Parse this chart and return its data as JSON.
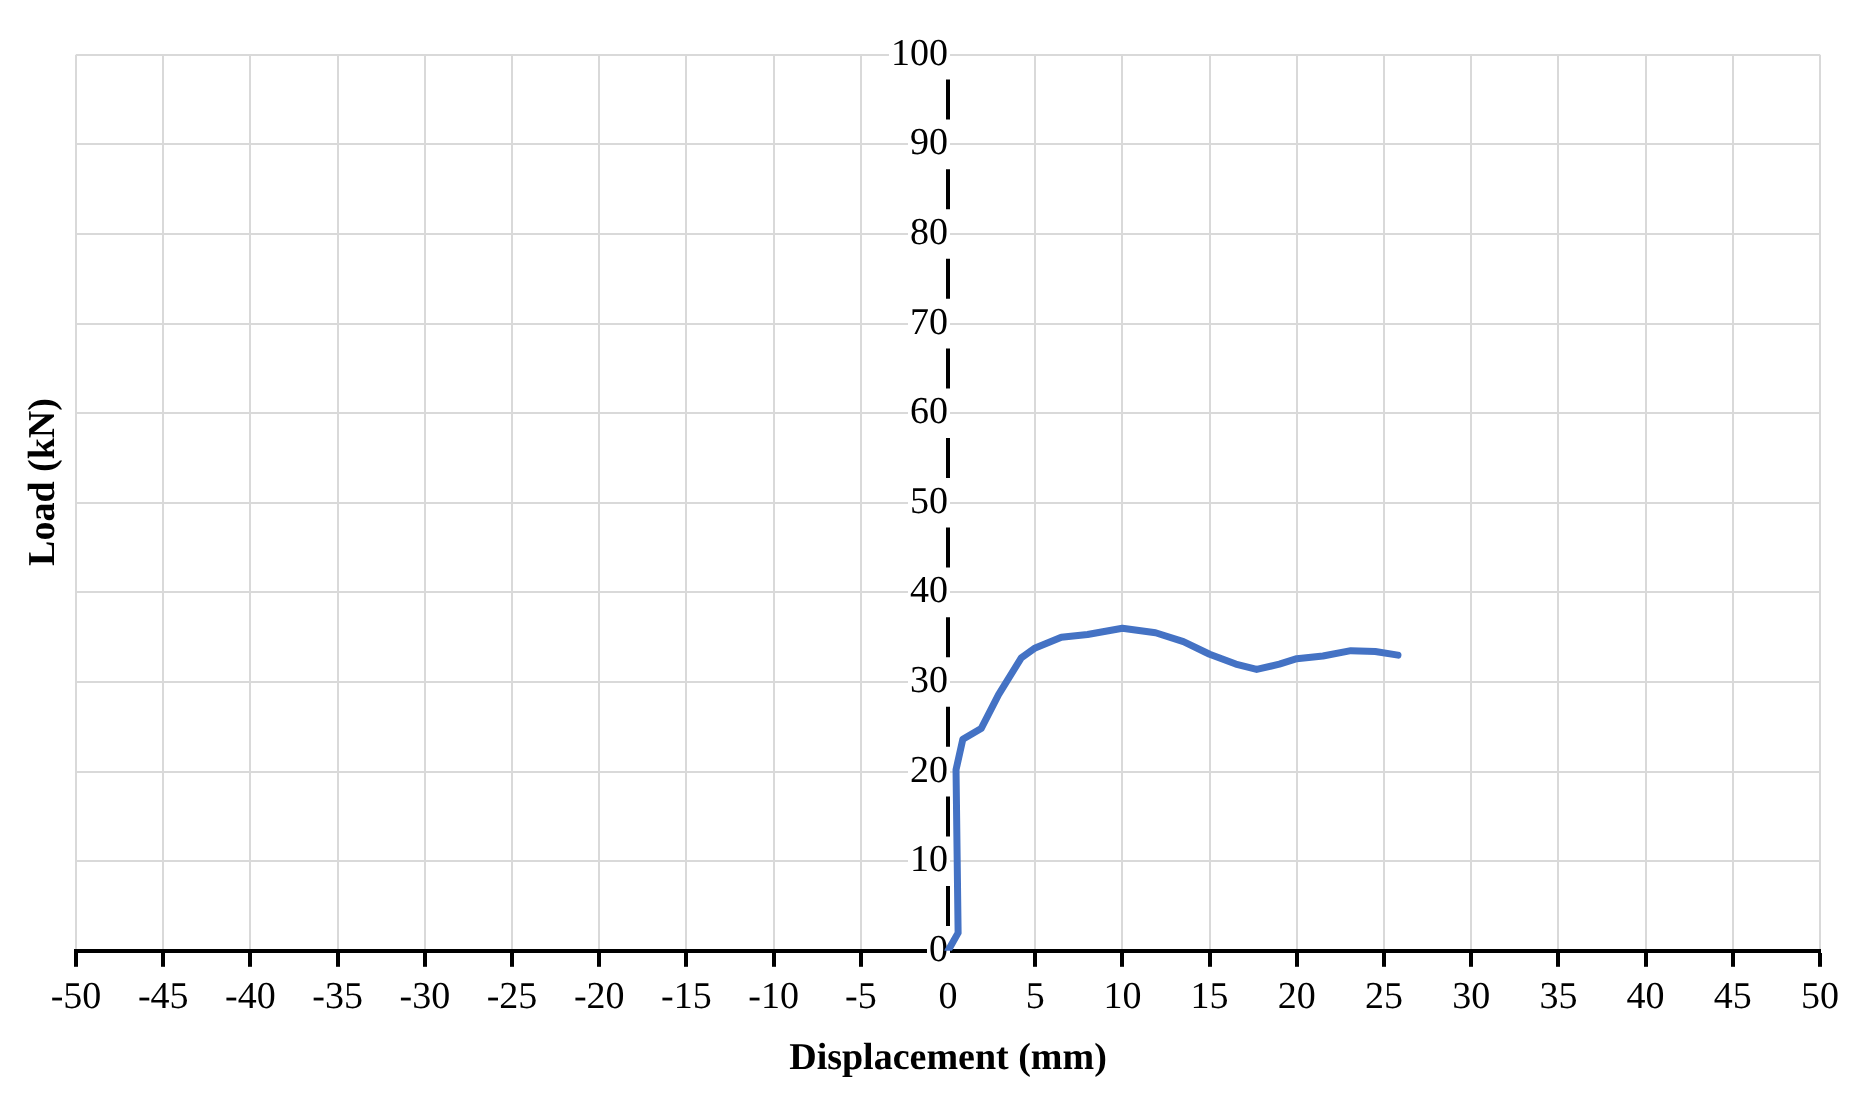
{
  "chart_data": {
    "type": "line",
    "xlabel": "Displacement (mm)",
    "ylabel": "Load (kN)",
    "series": [
      {
        "color": "#4472c4",
        "x": [
          0,
          0.58,
          0.46,
          0.85,
          1.9,
          2.9,
          4.2,
          5,
          6.5,
          8,
          10,
          11.9,
          13.5,
          15,
          16.5,
          17.7,
          19,
          20,
          21.5,
          23.1,
          24.5,
          25.8
        ],
        "values": [
          0,
          2,
          20.2,
          23.6,
          24.8,
          28.6,
          32.7,
          33.8,
          35,
          35.3,
          36,
          35.5,
          34.5,
          33.1,
          32,
          31.4,
          32,
          32.6,
          32.9,
          33.5,
          33.4,
          33
        ]
      }
    ],
    "xlim": [
      -50,
      50
    ],
    "xticks": [
      -50,
      -45,
      -40,
      -35,
      -30,
      -25,
      -20,
      -15,
      -10,
      -5,
      0,
      5,
      10,
      15,
      20,
      25,
      30,
      35,
      40,
      45,
      50
    ],
    "ylim": [
      0,
      100
    ],
    "yticks": [
      0,
      10,
      20,
      30,
      40,
      50,
      60,
      70,
      80,
      90,
      100
    ],
    "grid": true,
    "legend": false,
    "marker": "none",
    "line_style": "solid"
  }
}
